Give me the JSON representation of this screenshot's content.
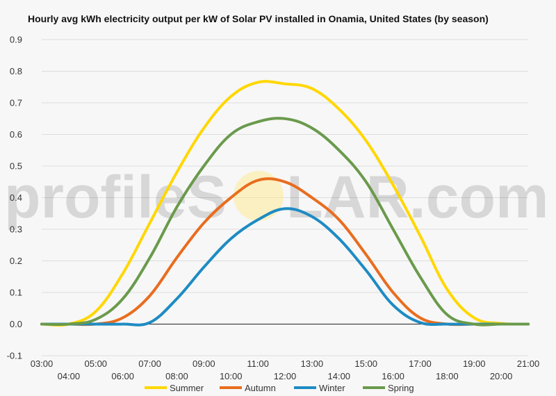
{
  "chart_data": {
    "type": "line",
    "title": "Hourly avg kWh electricity output per kW of Solar PV installed in Onamia, United States (by season)",
    "xlabel": "",
    "ylabel": "",
    "x": [
      "03:00",
      "04:00",
      "05:00",
      "06:00",
      "07:00",
      "08:00",
      "09:00",
      "10:00",
      "11:00",
      "12:00",
      "13:00",
      "14:00",
      "15:00",
      "16:00",
      "17:00",
      "18:00",
      "19:00",
      "20:00",
      "21:00"
    ],
    "ylim": [
      -0.1,
      0.9
    ],
    "yticks": [
      "-0.1",
      "0.0",
      "0.1",
      "0.2",
      "0.3",
      "0.4",
      "0.5",
      "0.6",
      "0.7",
      "0.8",
      "0.9"
    ],
    "grid": true,
    "legend": "bottom",
    "watermark": "profileSOLAR.com",
    "series": [
      {
        "name": "Summer",
        "color": "#ffd700",
        "values": [
          0,
          0,
          0.04,
          0.16,
          0.32,
          0.48,
          0.62,
          0.72,
          0.765,
          0.76,
          0.745,
          0.68,
          0.58,
          0.44,
          0.28,
          0.11,
          0.02,
          0.002,
          0
        ]
      },
      {
        "name": "Autumn",
        "color": "#e86d1f",
        "values": [
          0,
          0,
          0,
          0.02,
          0.09,
          0.21,
          0.32,
          0.4,
          0.455,
          0.45,
          0.4,
          0.33,
          0.22,
          0.1,
          0.02,
          0,
          0,
          0,
          0
        ]
      },
      {
        "name": "Winter",
        "color": "#1e8bc3",
        "values": [
          0,
          0,
          0,
          0,
          0.005,
          0.08,
          0.18,
          0.27,
          0.33,
          0.365,
          0.34,
          0.27,
          0.17,
          0.06,
          0.005,
          0,
          0,
          0,
          0
        ]
      },
      {
        "name": "Spring",
        "color": "#6a9a4c",
        "values": [
          0,
          0,
          0.015,
          0.08,
          0.21,
          0.37,
          0.5,
          0.6,
          0.64,
          0.65,
          0.62,
          0.55,
          0.45,
          0.3,
          0.15,
          0.03,
          0,
          0,
          0
        ]
      }
    ]
  }
}
